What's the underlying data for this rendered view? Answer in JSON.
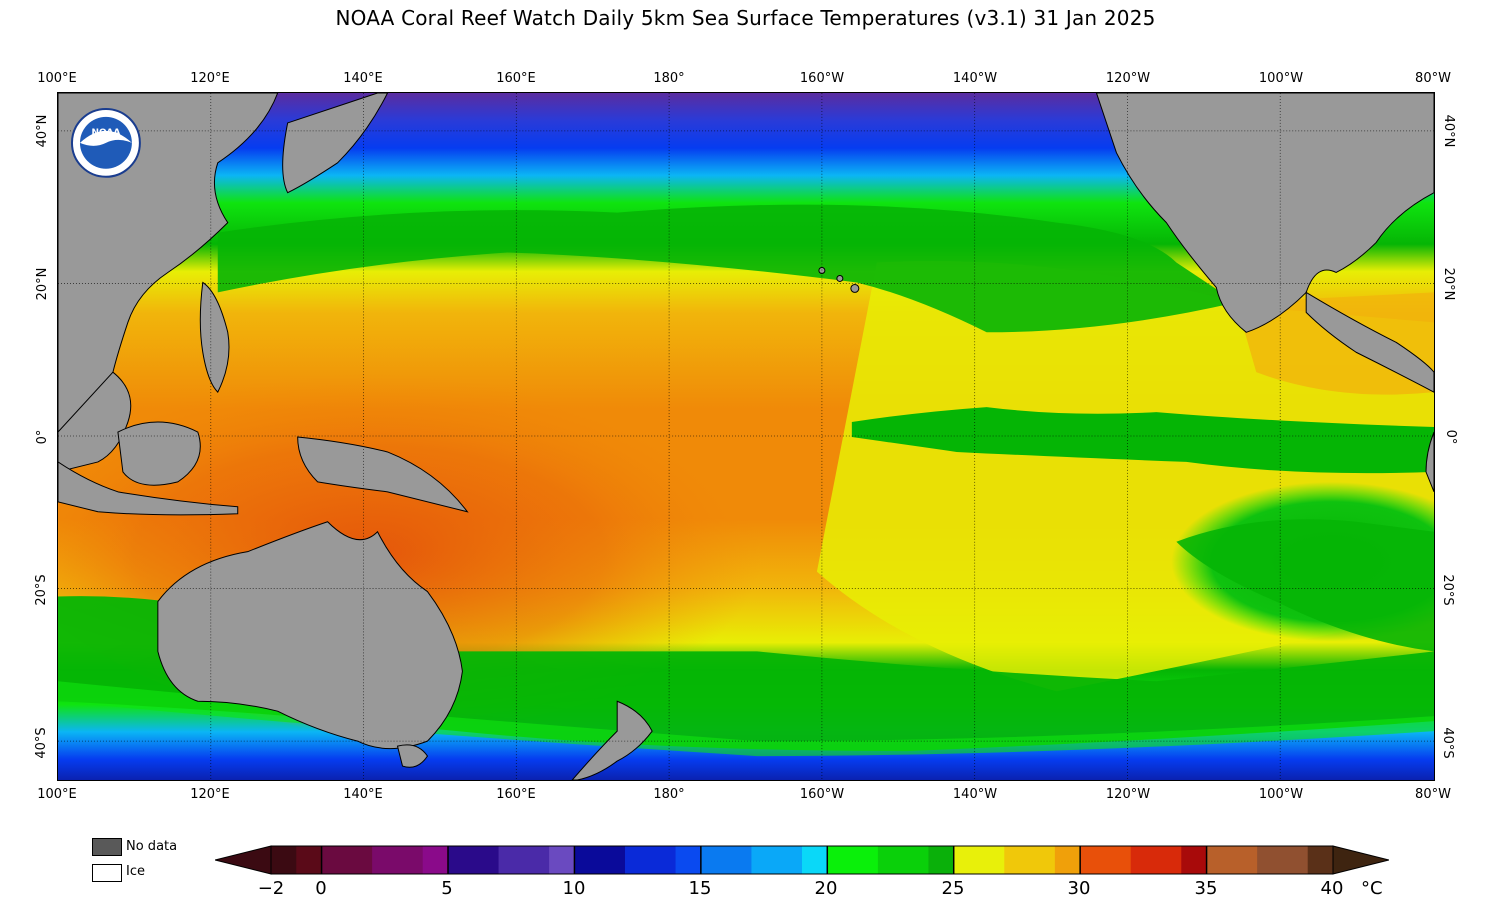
{
  "title": "NOAA Coral Reef Watch Daily 5km Sea Surface Temperatures  (v3.1)   31 Jan 2025",
  "lon_labels": [
    "100°E",
    "120°E",
    "140°E",
    "160°E",
    "180°",
    "160°W",
    "140°W",
    "120°W",
    "100°W",
    "80°W"
  ],
  "lat_labels_left": [
    "40°N",
    "20°N",
    "0°",
    "20°S",
    "40°S"
  ],
  "lat_labels_right": [
    "40°N",
    "20°N",
    "0°",
    "20°S",
    "40°S"
  ],
  "logo_text": "NOAA",
  "legend": {
    "nodata_label": "No data",
    "ice_label": "Ice",
    "nodata_color": "#595959",
    "ice_color": "#ffffff"
  },
  "colorbar": {
    "ticks": [
      "−2",
      "0",
      "5",
      "10",
      "15",
      "20",
      "25",
      "30",
      "35",
      "40"
    ],
    "unit": "°C",
    "min": -2,
    "max": 40
  },
  "colors": {
    "land": "#999999",
    "warm": "#e4520b",
    "hot_orange": "#f08a08",
    "yellow_orange": "#f1b50b",
    "yellow": "#e8ee05",
    "green": "#05b505",
    "light_green": "#0fe40f",
    "cyan": "#0bb5f5",
    "blue": "#063cf0",
    "purple": "#5a2ca0"
  }
}
